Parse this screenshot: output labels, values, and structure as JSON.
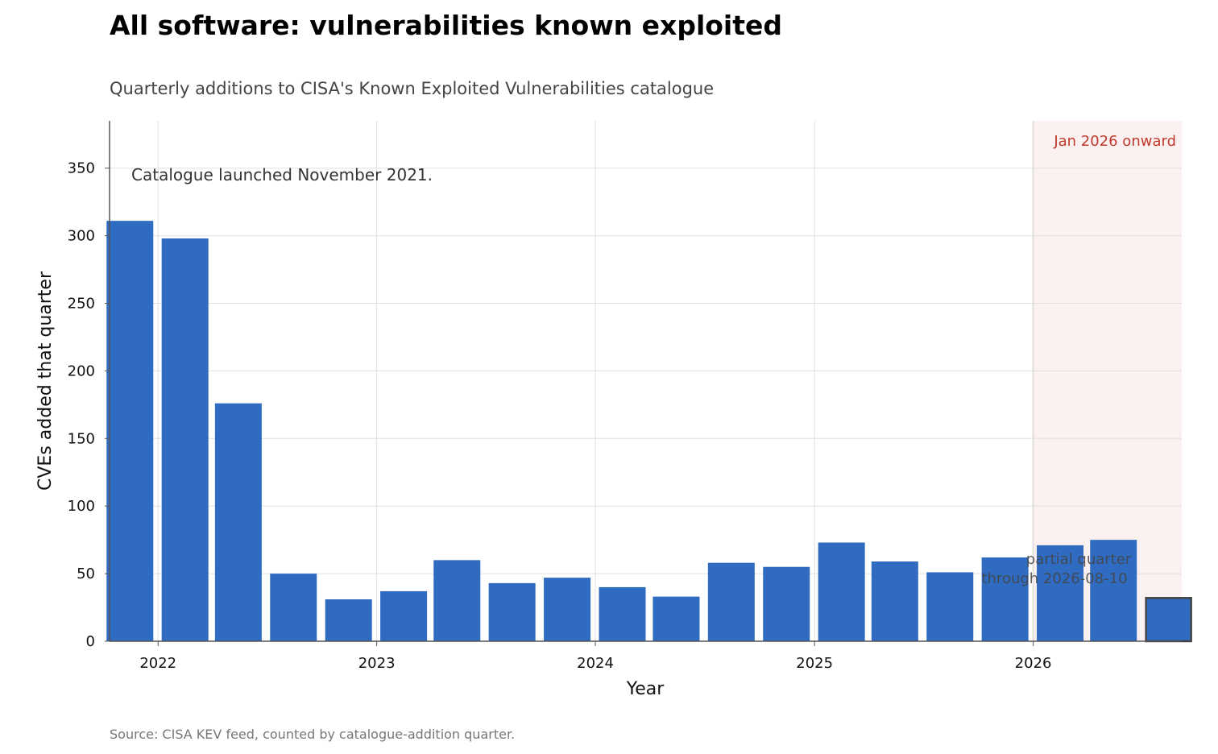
{
  "title": "All software: vulnerabilities known exploited",
  "subtitle": "Quarterly additions to CISA's Known Exploited Vulnerabilities catalogue",
  "source": "Source: CISA KEV feed, counted by catalogue-addition quarter.",
  "annotations": {
    "launch_note": "Catalogue launched November 2021.",
    "shaded_region_label": "Jan 2026 onward",
    "partial_line1": "partial quarter",
    "partial_line2": "through 2026-08-10"
  },
  "colors": {
    "bar": "#2f6bc1",
    "partial_bar_edge": "#444444",
    "shade": "#faf1f0",
    "shade_label": "#c0392b"
  },
  "chart_data": {
    "type": "bar",
    "title": "All software: vulnerabilities known exploited",
    "subtitle": "Quarterly additions to CISA's Known Exploited Vulnerabilities catalogue",
    "xlabel": "Year",
    "ylabel": "CVEs added that quarter",
    "x_tick_labels": [
      "2022",
      "2023",
      "2024",
      "2025",
      "2026"
    ],
    "y_ticks": [
      0,
      50,
      100,
      150,
      200,
      250,
      300,
      350
    ],
    "ylim": [
      0,
      385
    ],
    "xlim": [
      "2021-10-12",
      "2026-09-06"
    ],
    "grid": true,
    "shaded_region": {
      "start": "2026-01-01",
      "end": "2026-09-06",
      "label": "Jan 2026 onward"
    },
    "bar_width_days": 78,
    "bars": [
      {
        "quarter": "2021-11-15",
        "value": 311
      },
      {
        "quarter": "2022-02-15",
        "value": 298
      },
      {
        "quarter": "2022-05-15",
        "value": 176
      },
      {
        "quarter": "2022-08-15",
        "value": 50
      },
      {
        "quarter": "2022-11-15",
        "value": 31
      },
      {
        "quarter": "2023-02-15",
        "value": 37
      },
      {
        "quarter": "2023-05-15",
        "value": 60
      },
      {
        "quarter": "2023-08-15",
        "value": 43
      },
      {
        "quarter": "2023-11-15",
        "value": 47
      },
      {
        "quarter": "2024-02-15",
        "value": 40
      },
      {
        "quarter": "2024-05-15",
        "value": 33
      },
      {
        "quarter": "2024-08-15",
        "value": 58
      },
      {
        "quarter": "2024-11-15",
        "value": 55
      },
      {
        "quarter": "2025-02-15",
        "value": 73
      },
      {
        "quarter": "2025-05-15",
        "value": 59
      },
      {
        "quarter": "2025-08-15",
        "value": 51
      },
      {
        "quarter": "2025-11-15",
        "value": 62
      },
      {
        "quarter": "2026-02-15",
        "value": 71
      },
      {
        "quarter": "2026-05-15",
        "value": 75
      },
      {
        "quarter": "2026-08-15",
        "value": 32,
        "partial": true
      }
    ]
  }
}
